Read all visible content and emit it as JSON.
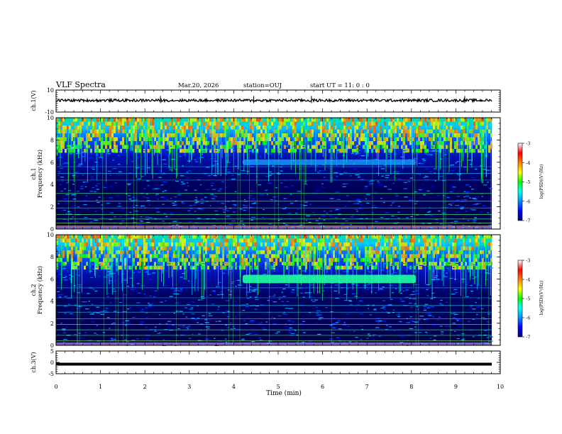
{
  "header": {
    "title": "VLF Spectra",
    "date": "Mar.20, 2026",
    "station": "station=OUJ",
    "start": "start  UT =   11: 0  : 0"
  },
  "colors": {
    "background": "#ffffff",
    "axis": "#000000",
    "colormap": [
      "#00007a",
      "#0000ff",
      "#0090ff",
      "#00ffff",
      "#00ff00",
      "#ffff00",
      "#ff8000",
      "#ff0000",
      "#ffffff"
    ]
  },
  "chart_data": [
    {
      "type": "line",
      "panel": "ch1-waveform",
      "ylabel": "ch.1(V)",
      "ylim": [
        -10,
        10
      ],
      "yticks": [
        "10",
        "-10"
      ],
      "baseline_v": 0.6,
      "noise_amplitude_v": 1.2
    },
    {
      "type": "heatmap",
      "panel": "ch1-spectrogram",
      "ylabel": "ch.1\nFrequency (kHz)",
      "ylim": [
        0,
        10
      ],
      "yticks": [
        "10",
        "8",
        "6",
        "4",
        "2",
        "0"
      ],
      "tonal_band": {
        "start_min": 4.2,
        "end_min": 8.1,
        "freq_khz": 6.0
      },
      "colorbar": {
        "label": "log(PSD)(V²/Hz)",
        "ticks": [
          "-3",
          "-4",
          "-5",
          "-6",
          "-7"
        ],
        "range": [
          -7,
          -3
        ]
      }
    },
    {
      "type": "heatmap",
      "panel": "ch2-spectrogram",
      "ylabel": "ch.2\nFrequency (kHz)",
      "ylim": [
        0,
        10
      ],
      "yticks": [
        "10",
        "8",
        "6",
        "4",
        "2",
        "0"
      ],
      "tonal_band": {
        "start_min": 4.2,
        "end_min": 8.1,
        "freq_khz": 6.0
      },
      "colorbar": {
        "label": "log(PSD)(V²/Hz)",
        "ticks": [
          "-3",
          "-4",
          "-5",
          "-6",
          "-7"
        ],
        "range": [
          -7,
          -3
        ]
      }
    },
    {
      "type": "line",
      "panel": "ch3-waveform",
      "ylabel": "ch.3(V)",
      "ylim": [
        -5,
        5
      ],
      "yticks": [
        "5",
        "0",
        "-5"
      ],
      "baseline_v": -0.8
    }
  ],
  "xaxis": {
    "label": "Time  (min)",
    "xlim": [
      0,
      10
    ],
    "ticks": [
      "0",
      "1",
      "2",
      "3",
      "4",
      "5",
      "6",
      "7",
      "8",
      "9",
      "10"
    ]
  },
  "labels": {
    "ch1": "ch.1(V)",
    "ch1_top": "ch.1",
    "ch2_top": "ch.2",
    "freq": "Frequency (kHz)",
    "ch3": "ch.3(V)",
    "cb_label": "log(PSD)(V²/Hz)"
  }
}
